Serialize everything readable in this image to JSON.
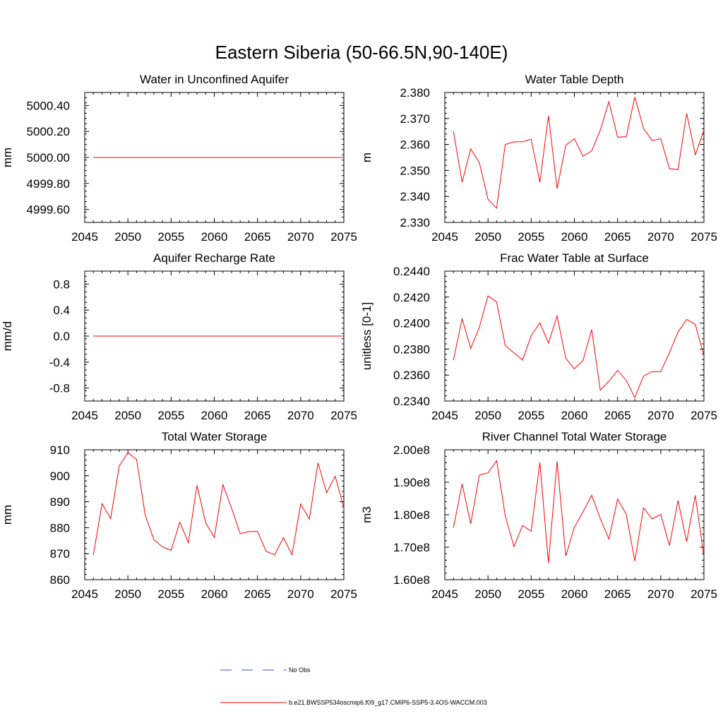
{
  "title": "Eastern Siberia (50-66.5N,90-140E)",
  "legend": {
    "entries": [
      {
        "label": "No Obs",
        "color": "#3b4cc0",
        "dash": "dashed"
      },
      {
        "label": "b.e21.BWSSP534oscmip6.f09_g17.CMIP6-SSP5-3.4OS-WACCM.003",
        "color": "#ff0000",
        "dash": "solid"
      }
    ]
  },
  "chart_data": [
    {
      "type": "line",
      "title": "Water in Unconfined Aquifer",
      "ylabel": "mm",
      "xlim": [
        2045,
        2075
      ],
      "ylim": [
        4999.5,
        5000.5
      ],
      "xticks": [
        2045,
        2050,
        2055,
        2060,
        2065,
        2070,
        2075
      ],
      "yticks": [
        4999.6,
        4999.8,
        5000.0,
        5000.2,
        5000.4
      ],
      "ytick_labels": [
        "4999.60",
        "4999.80",
        "5000.00",
        "5000.20",
        "5000.40"
      ],
      "x": [
        2046,
        2047,
        2048,
        2049,
        2050,
        2051,
        2052,
        2053,
        2054,
        2055,
        2056,
        2057,
        2058,
        2059,
        2060,
        2061,
        2062,
        2063,
        2064,
        2065,
        2066,
        2067,
        2068,
        2069,
        2070,
        2071,
        2072,
        2073,
        2074,
        2075
      ],
      "series": [
        {
          "color": "#ff0000",
          "values": [
            5000,
            5000,
            5000,
            5000,
            5000,
            5000,
            5000,
            5000,
            5000,
            5000,
            5000,
            5000,
            5000,
            5000,
            5000,
            5000,
            5000,
            5000,
            5000,
            5000,
            5000,
            5000,
            5000,
            5000,
            5000,
            5000,
            5000,
            5000,
            5000,
            5000
          ]
        }
      ]
    },
    {
      "type": "line",
      "title": "Water Table Depth",
      "ylabel": "m",
      "xlim": [
        2045,
        2075
      ],
      "ylim": [
        2.33,
        2.38
      ],
      "xticks": [
        2045,
        2050,
        2055,
        2060,
        2065,
        2070,
        2075
      ],
      "yticks": [
        2.33,
        2.34,
        2.35,
        2.36,
        2.37,
        2.38
      ],
      "ytick_labels": [
        "2.330",
        "2.340",
        "2.350",
        "2.360",
        "2.370",
        "2.380"
      ],
      "x": [
        2046,
        2047,
        2048,
        2049,
        2050,
        2051,
        2052,
        2053,
        2054,
        2055,
        2056,
        2057,
        2058,
        2059,
        2060,
        2061,
        2062,
        2063,
        2064,
        2065,
        2066,
        2067,
        2068,
        2069,
        2070,
        2071,
        2072,
        2073,
        2074,
        2075
      ],
      "series": [
        {
          "color": "#ff0000",
          "values": [
            2.365,
            2.3455,
            2.3583,
            2.353,
            2.3389,
            2.3355,
            2.36,
            2.361,
            2.361,
            2.362,
            2.3455,
            2.371,
            2.343,
            2.3597,
            2.3622,
            2.3555,
            2.3575,
            2.3655,
            2.3765,
            2.3628,
            2.363,
            2.3783,
            2.3662,
            2.3615,
            2.3622,
            2.3507,
            2.3503,
            2.372,
            2.356,
            2.3655
          ]
        }
      ]
    },
    {
      "type": "line",
      "title": "Aquifer Recharge Rate",
      "ylabel": "mm/d",
      "xlim": [
        2045,
        2075
      ],
      "ylim": [
        -1.0,
        1.0
      ],
      "xticks": [
        2045,
        2050,
        2055,
        2060,
        2065,
        2070,
        2075
      ],
      "yticks": [
        -0.8,
        -0.4,
        0.0,
        0.4,
        0.8
      ],
      "ytick_labels": [
        "-0.8",
        "-0.4",
        "0.0",
        "0.4",
        "0.8"
      ],
      "x": [
        2046,
        2047,
        2048,
        2049,
        2050,
        2051,
        2052,
        2053,
        2054,
        2055,
        2056,
        2057,
        2058,
        2059,
        2060,
        2061,
        2062,
        2063,
        2064,
        2065,
        2066,
        2067,
        2068,
        2069,
        2070,
        2071,
        2072,
        2073,
        2074,
        2075
      ],
      "series": [
        {
          "color": "#ff0000",
          "values": [
            0,
            0,
            0,
            0,
            0,
            0,
            0,
            0,
            0,
            0,
            0,
            0,
            0,
            0,
            0,
            0,
            0,
            0,
            0,
            0,
            0,
            0,
            0,
            0,
            0,
            0,
            0,
            0,
            0,
            0
          ]
        }
      ]
    },
    {
      "type": "line",
      "title": "Frac Water Table at Surface",
      "ylabel": "unitless [0-1]",
      "xlim": [
        2045,
        2075
      ],
      "ylim": [
        0.234,
        0.244
      ],
      "xticks": [
        2045,
        2050,
        2055,
        2060,
        2065,
        2070,
        2075
      ],
      "yticks": [
        0.234,
        0.236,
        0.238,
        0.24,
        0.242,
        0.244
      ],
      "ytick_labels": [
        "0.2340",
        "0.2360",
        "0.2380",
        "0.2400",
        "0.2420",
        "0.2440"
      ],
      "x": [
        2046,
        2047,
        2048,
        2049,
        2050,
        2051,
        2052,
        2053,
        2054,
        2055,
        2056,
        2057,
        2058,
        2059,
        2060,
        2061,
        2062,
        2063,
        2064,
        2065,
        2066,
        2067,
        2068,
        2069,
        2070,
        2071,
        2072,
        2073,
        2074,
        2075
      ],
      "series": [
        {
          "color": "#ff0000",
          "values": [
            0.23716,
            0.24035,
            0.23805,
            0.23968,
            0.24209,
            0.24162,
            0.23828,
            0.23771,
            0.23716,
            0.23902,
            0.24002,
            0.23847,
            0.24055,
            0.2373,
            0.23648,
            0.23712,
            0.23951,
            0.23485,
            0.23552,
            0.23636,
            0.2356,
            0.23426,
            0.23592,
            0.23627,
            0.23626,
            0.23771,
            0.23931,
            0.24028,
            0.23989,
            0.2375
          ]
        }
      ]
    },
    {
      "type": "line",
      "title": "Total Water Storage",
      "ylabel": "mm",
      "xlim": [
        2045,
        2075
      ],
      "ylim": [
        860,
        910
      ],
      "xticks": [
        2045,
        2050,
        2055,
        2060,
        2065,
        2070,
        2075
      ],
      "yticks": [
        860,
        870,
        880,
        890,
        900,
        910
      ],
      "ytick_labels": [
        "860",
        "870",
        "880",
        "890",
        "900",
        "910"
      ],
      "x": [
        2046,
        2047,
        2048,
        2049,
        2050,
        2051,
        2052,
        2053,
        2054,
        2055,
        2056,
        2057,
        2058,
        2059,
        2060,
        2061,
        2062,
        2063,
        2064,
        2065,
        2066,
        2067,
        2068,
        2069,
        2070,
        2071,
        2072,
        2073,
        2074,
        2075
      ],
      "series": [
        {
          "color": "#ff0000",
          "values": [
            869.5,
            889.2,
            883.5,
            903.8,
            908.9,
            906.3,
            885.0,
            875.4,
            872.6,
            871.3,
            882.1,
            874.3,
            896.3,
            881.9,
            876.3,
            896.6,
            887.5,
            877.7,
            878.5,
            878.6,
            870.9,
            869.6,
            876.2,
            869.6,
            889.1,
            883.3,
            905.0,
            893.5,
            899.8,
            887.6
          ]
        }
      ]
    },
    {
      "type": "line",
      "title": "River Channel Total Water Storage",
      "ylabel": "m3",
      "xlim": [
        2045,
        2075
      ],
      "ylim": [
        160000000,
        200000000
      ],
      "xticks": [
        2045,
        2050,
        2055,
        2060,
        2065,
        2070,
        2075
      ],
      "yticks": [
        160000000,
        170000000,
        180000000,
        190000000,
        200000000
      ],
      "ytick_labels": [
        "1.60e8",
        "1.70e8",
        "1.80e8",
        "1.90e8",
        "2.00e8"
      ],
      "x": [
        2046,
        2047,
        2048,
        2049,
        2050,
        2051,
        2052,
        2053,
        2054,
        2055,
        2056,
        2057,
        2058,
        2059,
        2060,
        2061,
        2062,
        2063,
        2064,
        2065,
        2066,
        2067,
        2068,
        2069,
        2070,
        2071,
        2072,
        2073,
        2074,
        2075
      ],
      "series": [
        {
          "color": "#ff0000",
          "values": [
            176000000,
            189500000,
            177200000,
            192200000,
            192900000,
            196600000,
            179600000,
            170200000,
            176700000,
            174900000,
            196100000,
            165200000,
            196400000,
            167300000,
            176100000,
            180900000,
            186000000,
            178800000,
            172500000,
            184800000,
            180200000,
            165700000,
            182100000,
            178700000,
            180100000,
            170500000,
            184400000,
            171700000,
            186000000,
            167000000
          ]
        }
      ]
    }
  ]
}
